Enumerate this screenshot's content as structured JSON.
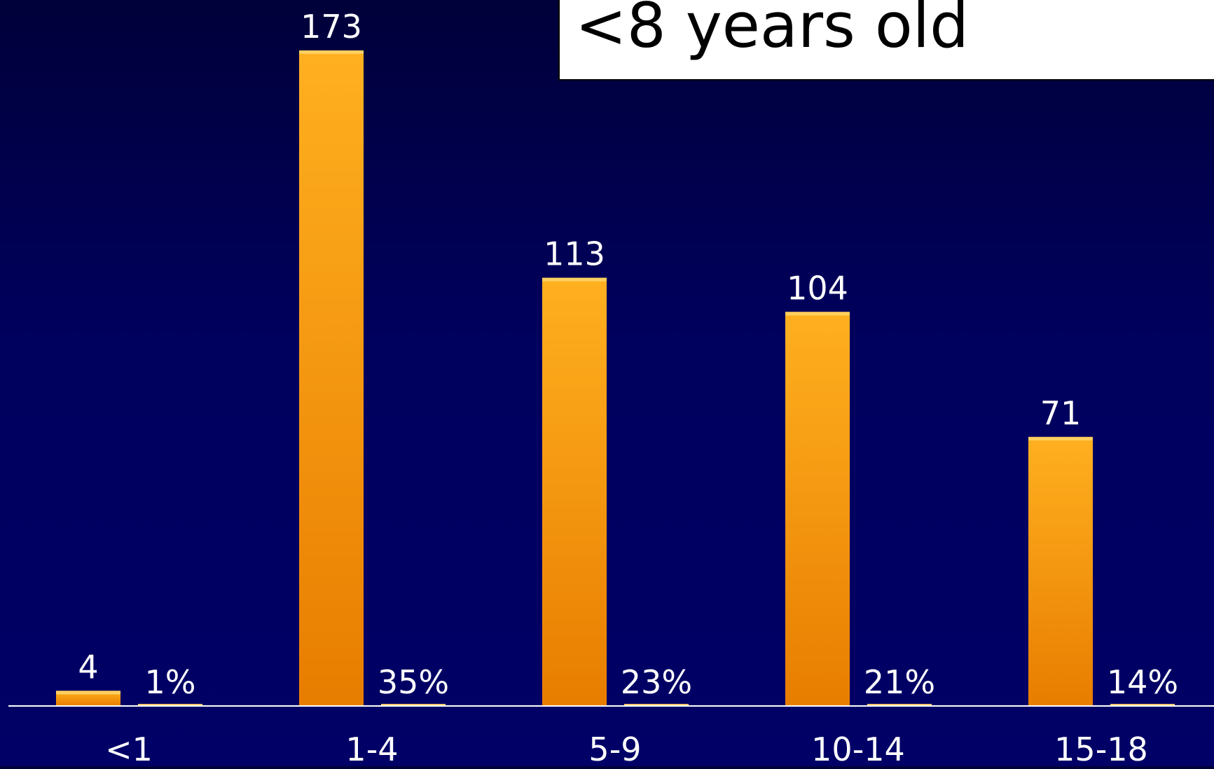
{
  "callout": {
    "text": "<8 years old"
  },
  "colors": {
    "bar_top": "#ffb020",
    "bar_bottom": "#e87d00",
    "text": "#ffffff",
    "baseline": "#ffffff"
  },
  "chart_data": {
    "type": "bar",
    "title": "",
    "xlabel": "",
    "ylabel": "",
    "categories": [
      "<1",
      "1-4",
      "5-9",
      "10-14",
      "15-18"
    ],
    "values": [
      4,
      173,
      113,
      104,
      71
    ],
    "value_labels": [
      "4",
      "173",
      "113",
      "104",
      "71"
    ],
    "percent_labels": [
      "1%",
      "35%",
      "23%",
      "21%",
      "14%"
    ],
    "ylim": [
      0,
      173
    ],
    "grid": false,
    "legend": "none"
  }
}
